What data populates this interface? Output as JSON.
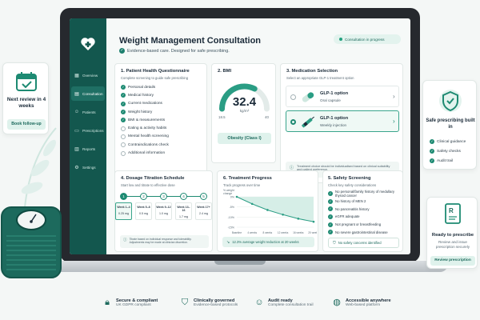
{
  "app": {
    "title": "Weight Management Consultation",
    "subtitle": "Evidence-based care. Designed for safe prescribing.",
    "status": "Consultation in progress"
  },
  "sidebar": {
    "items": [
      {
        "label": "Overview",
        "icon": "grid-icon"
      },
      {
        "label": "Consultation",
        "icon": "clipboard-icon"
      },
      {
        "label": "Patients",
        "icon": "users-icon"
      },
      {
        "label": "Prescriptions",
        "icon": "document-icon"
      },
      {
        "label": "Reports",
        "icon": "chart-icon"
      },
      {
        "label": "Settings",
        "icon": "gear-icon"
      }
    ]
  },
  "questionnaire": {
    "title": "1. Patient Health Questionnaire",
    "subtitle": "Complete screening to guide safe prescribing",
    "items": [
      {
        "label": "Personal details",
        "done": true
      },
      {
        "label": "Medical history",
        "done": true
      },
      {
        "label": "Current medications",
        "done": true
      },
      {
        "label": "Weight history",
        "done": true
      },
      {
        "label": "BMI & measurements",
        "done": true
      },
      {
        "label": "Eating & activity habits",
        "done": false
      },
      {
        "label": "Mental health screening",
        "done": false
      },
      {
        "label": "Contraindications check",
        "done": false
      },
      {
        "label": "Additional information",
        "done": false
      }
    ]
  },
  "bmi": {
    "title": "2. BMI",
    "value": "32.4",
    "unit": "kg/m²",
    "min": "18.5",
    "max": "40",
    "gauge_fraction": 0.65,
    "category": "Obesity (Class I)"
  },
  "medication": {
    "title": "3. Medication Selection",
    "subtitle": "Select an appropriate GLP-1 treatment option",
    "options": [
      {
        "name": "GLP-1 option",
        "form": "Oral capsule",
        "selected": false
      },
      {
        "name": "GLP-1 option",
        "form": "Weekly injection",
        "selected": true
      }
    ],
    "note": "Treatment choice should be individualised based on clinical suitability and patient preference."
  },
  "titration": {
    "title": "4. Dosage Titration Schedule",
    "subtitle": "Start low and titrate to effective dose",
    "steps": [
      {
        "num": "1",
        "week": "Week 1–4",
        "dose": "0.25 mg"
      },
      {
        "num": "2",
        "week": "Week 5–8",
        "dose": "0.5 mg"
      },
      {
        "num": "3",
        "week": "Week 9–12",
        "dose": "1.0 mg"
      },
      {
        "num": "4",
        "week": "Week 13–16",
        "dose": "1.7 mg"
      },
      {
        "num": "5",
        "week": "Week 17+",
        "dose": "2.4 mg"
      }
    ],
    "note": "Titrate based on individual response and tolerability. Adjustments may be made at clinician discretion."
  },
  "progress": {
    "title": "6. Treatment Progress",
    "subtitle": "Track progress over time",
    "note": "12.3% average weight reduction at 20 weeks"
  },
  "chart_data": {
    "type": "area",
    "ylabel": "% weight change",
    "categories": [
      "Baseline",
      "4 weeks",
      "8 weeks",
      "12 weeks",
      "16 weeks",
      "20 weeks"
    ],
    "yticks": [
      "0%",
      "-5%",
      "-10%",
      "-15%"
    ],
    "ylim": [
      -15,
      0
    ],
    "series": [
      {
        "values": [
          0,
          -3.5,
          -6.5,
          -8.8,
          -10.8,
          -12.3
        ]
      }
    ],
    "grid": true,
    "color": "#2a9d84"
  },
  "screening": {
    "title": "5. Safety Screening",
    "subtitle": "Check key safety considerations",
    "items": [
      "No personal/family history of medullary thyroid cancer",
      "No history of MEN 2",
      "No pancreatitis history",
      "eGFR adequate",
      "Not pregnant or breastfeeding",
      "No severe gastrointestinal disease"
    ],
    "footer": "No safety concerns identified"
  },
  "left_card": {
    "text": "Next review in 4 weeks",
    "button": "Book follow-up"
  },
  "right_card_top": {
    "title": "Safe prescribing built in",
    "items": [
      "Clinical guidance",
      "Safety checks",
      "Audit trail"
    ]
  },
  "right_card_bottom": {
    "title": "Ready to prescribe",
    "subtitle": "Review and issue prescription securely",
    "button": "Review prescription"
  },
  "footer": {
    "items": [
      {
        "title": "Secure & compliant",
        "sub": "UK GDPR compliant"
      },
      {
        "title": "Clinically governed",
        "sub": "Evidence-based protocols"
      },
      {
        "title": "Audit ready",
        "sub": "Complete consultation trail"
      },
      {
        "title": "Accessible anywhere",
        "sub": "Web-based platform"
      }
    ]
  },
  "colors": {
    "accent": "#1d8a72",
    "sidebar": "#13574e",
    "tint": "#dff2ec"
  }
}
